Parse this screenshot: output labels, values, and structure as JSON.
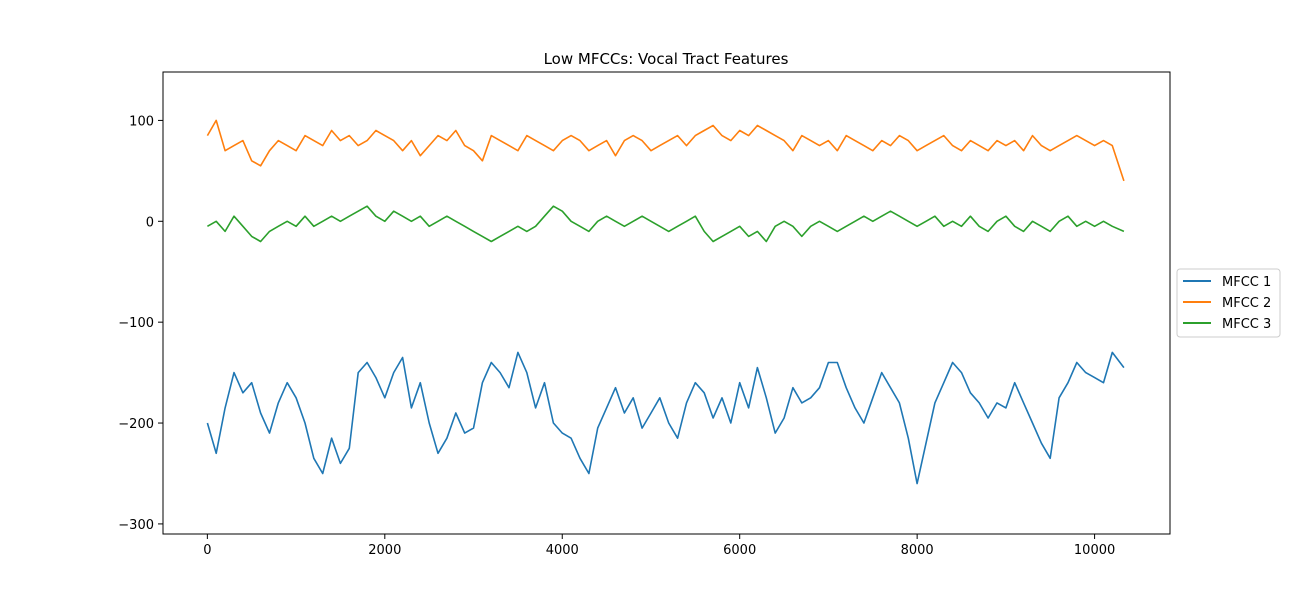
{
  "chart_data": {
    "type": "line",
    "title": "Low MFCCs: Vocal Tract Features",
    "xlabel": "",
    "ylabel": "",
    "xlim": [
      -500,
      10850
    ],
    "ylim": [
      -310,
      148
    ],
    "x_ticks": [
      0,
      2000,
      4000,
      6000,
      8000,
      10000
    ],
    "x_tick_labels": [
      "0",
      "2000",
      "4000",
      "6000",
      "8000",
      "10000"
    ],
    "y_ticks": [
      100,
      0,
      -100,
      -200,
      -300
    ],
    "y_tick_labels": [
      "100",
      "0",
      "−100",
      "−200",
      "−300"
    ],
    "grid": false,
    "legend_position": "center-right-outside",
    "x_start": 0,
    "x_end": 10330,
    "series": [
      {
        "name": "MFCC 1",
        "color": "#1f77b4",
        "x": [
          0,
          100,
          200,
          300,
          400,
          500,
          600,
          700,
          800,
          900,
          1000,
          1100,
          1200,
          1300,
          1400,
          1500,
          1600,
          1700,
          1800,
          1900,
          2000,
          2100,
          2200,
          2300,
          2400,
          2500,
          2600,
          2700,
          2800,
          2900,
          3000,
          3100,
          3200,
          3300,
          3400,
          3500,
          3600,
          3700,
          3800,
          3900,
          4000,
          4100,
          4200,
          4300,
          4400,
          4500,
          4600,
          4700,
          4800,
          4900,
          5000,
          5100,
          5200,
          5300,
          5400,
          5500,
          5600,
          5700,
          5800,
          5900,
          6000,
          6100,
          6200,
          6300,
          6400,
          6500,
          6600,
          6700,
          6800,
          6900,
          7000,
          7100,
          7200,
          7300,
          7400,
          7500,
          7600,
          7700,
          7800,
          7900,
          8000,
          8100,
          8200,
          8300,
          8400,
          8500,
          8600,
          8700,
          8800,
          8900,
          9000,
          9100,
          9200,
          9300,
          9400,
          9500,
          9600,
          9700,
          9800,
          9900,
          10000,
          10100,
          10200,
          10330
        ],
        "values": [
          -200,
          -230,
          -185,
          -150,
          -170,
          -160,
          -190,
          -210,
          -180,
          -160,
          -175,
          -200,
          -235,
          -250,
          -215,
          -240,
          -225,
          -150,
          -140,
          -155,
          -175,
          -150,
          -135,
          -185,
          -160,
          -200,
          -230,
          -215,
          -190,
          -210,
          -205,
          -160,
          -140,
          -150,
          -165,
          -130,
          -150,
          -185,
          -160,
          -200,
          -210,
          -215,
          -235,
          -250,
          -205,
          -185,
          -165,
          -190,
          -175,
          -205,
          -190,
          -175,
          -200,
          -215,
          -180,
          -160,
          -170,
          -195,
          -175,
          -200,
          -160,
          -185,
          -145,
          -175,
          -210,
          -195,
          -165,
          -180,
          -175,
          -165,
          -140,
          -140,
          -165,
          -185,
          -200,
          -175,
          -150,
          -165,
          -180,
          -215,
          -260,
          -220,
          -180,
          -160,
          -140,
          -150,
          -170,
          -180,
          -195,
          -180,
          -185,
          -160,
          -180,
          -200,
          -220,
          -235,
          -175,
          -160,
          -140,
          -150,
          -155,
          -160,
          -130,
          -145
        ]
      },
      {
        "name": "MFCC 2",
        "color": "#ff7f0e",
        "x": [
          0,
          100,
          200,
          300,
          400,
          500,
          600,
          700,
          800,
          900,
          1000,
          1100,
          1200,
          1300,
          1400,
          1500,
          1600,
          1700,
          1800,
          1900,
          2000,
          2100,
          2200,
          2300,
          2400,
          2500,
          2600,
          2700,
          2800,
          2900,
          3000,
          3100,
          3200,
          3300,
          3400,
          3500,
          3600,
          3700,
          3800,
          3900,
          4000,
          4100,
          4200,
          4300,
          4400,
          4500,
          4600,
          4700,
          4800,
          4900,
          5000,
          5100,
          5200,
          5300,
          5400,
          5500,
          5600,
          5700,
          5800,
          5900,
          6000,
          6100,
          6200,
          6300,
          6400,
          6500,
          6600,
          6700,
          6800,
          6900,
          7000,
          7100,
          7200,
          7300,
          7400,
          7500,
          7600,
          7700,
          7800,
          7900,
          8000,
          8100,
          8200,
          8300,
          8400,
          8500,
          8600,
          8700,
          8800,
          8900,
          9000,
          9100,
          9200,
          9300,
          9400,
          9500,
          9600,
          9700,
          9800,
          9900,
          10000,
          10100,
          10200,
          10330
        ],
        "values": [
          85,
          100,
          70,
          75,
          80,
          60,
          55,
          70,
          80,
          75,
          70,
          85,
          80,
          75,
          90,
          80,
          85,
          75,
          80,
          90,
          85,
          80,
          70,
          80,
          65,
          75,
          85,
          80,
          90,
          75,
          70,
          60,
          85,
          80,
          75,
          70,
          85,
          80,
          75,
          70,
          80,
          85,
          80,
          70,
          75,
          80,
          65,
          80,
          85,
          80,
          70,
          75,
          80,
          85,
          75,
          85,
          90,
          95,
          85,
          80,
          90,
          85,
          95,
          90,
          85,
          80,
          70,
          85,
          80,
          75,
          80,
          70,
          85,
          80,
          75,
          70,
          80,
          75,
          85,
          80,
          70,
          75,
          80,
          85,
          75,
          70,
          80,
          75,
          70,
          80,
          75,
          80,
          70,
          85,
          75,
          70,
          75,
          80,
          85,
          80,
          75,
          80,
          75,
          40
        ]
      },
      {
        "name": "MFCC 3",
        "color": "#2ca02c",
        "x": [
          0,
          100,
          200,
          300,
          400,
          500,
          600,
          700,
          800,
          900,
          1000,
          1100,
          1200,
          1300,
          1400,
          1500,
          1600,
          1700,
          1800,
          1900,
          2000,
          2100,
          2200,
          2300,
          2400,
          2500,
          2600,
          2700,
          2800,
          2900,
          3000,
          3100,
          3200,
          3300,
          3400,
          3500,
          3600,
          3700,
          3800,
          3900,
          4000,
          4100,
          4200,
          4300,
          4400,
          4500,
          4600,
          4700,
          4800,
          4900,
          5000,
          5100,
          5200,
          5300,
          5400,
          5500,
          5600,
          5700,
          5800,
          5900,
          6000,
          6100,
          6200,
          6300,
          6400,
          6500,
          6600,
          6700,
          6800,
          6900,
          7000,
          7100,
          7200,
          7300,
          7400,
          7500,
          7600,
          7700,
          7800,
          7900,
          8000,
          8100,
          8200,
          8300,
          8400,
          8500,
          8600,
          8700,
          8800,
          8900,
          9000,
          9100,
          9200,
          9300,
          9400,
          9500,
          9600,
          9700,
          9800,
          9900,
          10000,
          10100,
          10200,
          10330
        ],
        "values": [
          -5,
          0,
          -10,
          5,
          -5,
          -15,
          -20,
          -10,
          -5,
          0,
          -5,
          5,
          -5,
          0,
          5,
          0,
          5,
          10,
          15,
          5,
          0,
          10,
          5,
          0,
          5,
          -5,
          0,
          5,
          0,
          -5,
          -10,
          -15,
          -20,
          -15,
          -10,
          -5,
          -10,
          -5,
          5,
          15,
          10,
          0,
          -5,
          -10,
          0,
          5,
          0,
          -5,
          0,
          5,
          0,
          -5,
          -10,
          -5,
          0,
          5,
          -10,
          -20,
          -15,
          -10,
          -5,
          -15,
          -10,
          -20,
          -5,
          0,
          -5,
          -15,
          -5,
          0,
          -5,
          -10,
          -5,
          0,
          5,
          0,
          5,
          10,
          5,
          0,
          -5,
          0,
          5,
          -5,
          0,
          -5,
          5,
          -5,
          -10,
          0,
          5,
          -5,
          -10,
          0,
          -5,
          -10,
          0,
          5,
          -5,
          0,
          -5,
          0,
          -5,
          -10
        ]
      }
    ]
  }
}
